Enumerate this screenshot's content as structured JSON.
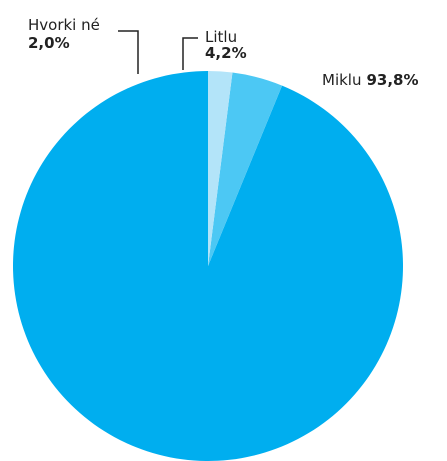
{
  "chart_data": {
    "type": "pie",
    "categories": [
      "Miklu",
      "Litlu",
      "Hvorki né"
    ],
    "values": [
      93.8,
      4.2,
      2.0
    ],
    "value_labels": [
      "93,8%",
      "4,2%",
      "2,0%"
    ],
    "colors": [
      "#00aeef",
      "#4cc8f4",
      "#b3e4f9"
    ],
    "start_angle_deg": 0,
    "direction": "counter-clockwise"
  }
}
